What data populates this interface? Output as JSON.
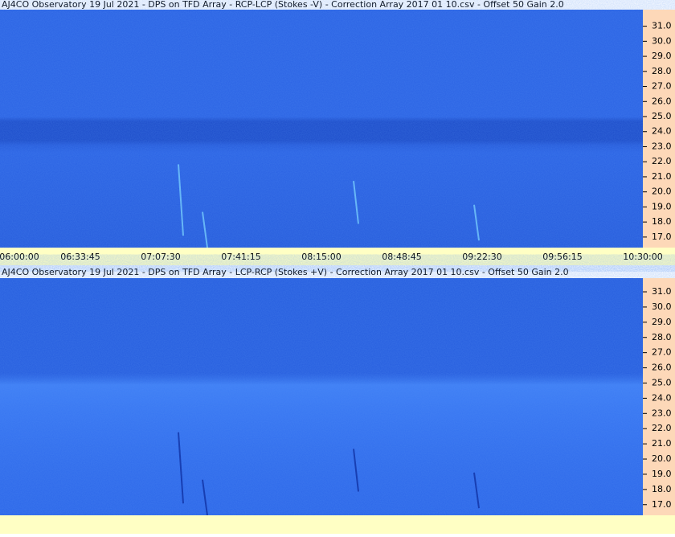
{
  "chart_data": [
    {
      "type": "spectrogram",
      "title": "AJ4CO Observatory 19 Jul 2021  -  DPS on TFD Array  -  RCP-LCP (Stokes -V)  -  Correction Array 2017 01 10.csv  -  Offset 50  Gain 2.0",
      "color": "#2a62e4",
      "ylim": [
        16.3,
        32.1
      ],
      "yticks": [
        {
          "value": 17,
          "label": "17.0"
        },
        {
          "value": 18,
          "label": "18.0"
        },
        {
          "value": 19,
          "label": "19.0"
        },
        {
          "value": 20,
          "label": "20.0"
        },
        {
          "value": 21,
          "label": "21.0"
        },
        {
          "value": 22,
          "label": "22.0"
        },
        {
          "value": 23,
          "label": "23.0"
        },
        {
          "value": 24,
          "label": "24.0"
        },
        {
          "value": 25,
          "label": "25.0"
        },
        {
          "value": 26,
          "label": "26.0"
        },
        {
          "value": 27,
          "label": "27.0"
        },
        {
          "value": 28,
          "label": "28.0"
        },
        {
          "value": 29,
          "label": "29.0"
        },
        {
          "value": 30,
          "label": "30.0"
        },
        {
          "value": 31,
          "label": "31.0"
        }
      ],
      "xticks": [
        "06:00:00",
        "06:33:45",
        "07:07:30",
        "07:41:15",
        "08:15:00",
        "08:48:45",
        "09:22:30",
        "09:56:15",
        "10:30:00"
      ]
    },
    {
      "type": "spectrogram",
      "title": "AJ4CO Observatory 19 Jul 2021  -  DPS on TFD Array  -  LCP-RCP (Stokes +V)  -  Correction Array 2017 01 10.csv  -  Offset 50  Gain 2.0",
      "color": "#2f6cf0",
      "ylim": [
        16.3,
        31.9
      ],
      "yticks": [
        {
          "value": 17,
          "label": "17.0"
        },
        {
          "value": 18,
          "label": "18.0"
        },
        {
          "value": 19,
          "label": "19.0"
        },
        {
          "value": 20,
          "label": "20.0"
        },
        {
          "value": 21,
          "label": "21.0"
        },
        {
          "value": 22,
          "label": "22.0"
        },
        {
          "value": 23,
          "label": "23.0"
        },
        {
          "value": 24,
          "label": "24.0"
        },
        {
          "value": 25,
          "label": "25.0"
        },
        {
          "value": 26,
          "label": "26.0"
        },
        {
          "value": 27,
          "label": "27.0"
        },
        {
          "value": 28,
          "label": "28.0"
        },
        {
          "value": 29,
          "label": "29.0"
        },
        {
          "value": 30,
          "label": "30.0"
        },
        {
          "value": 31,
          "label": "31.0"
        }
      ]
    }
  ]
}
